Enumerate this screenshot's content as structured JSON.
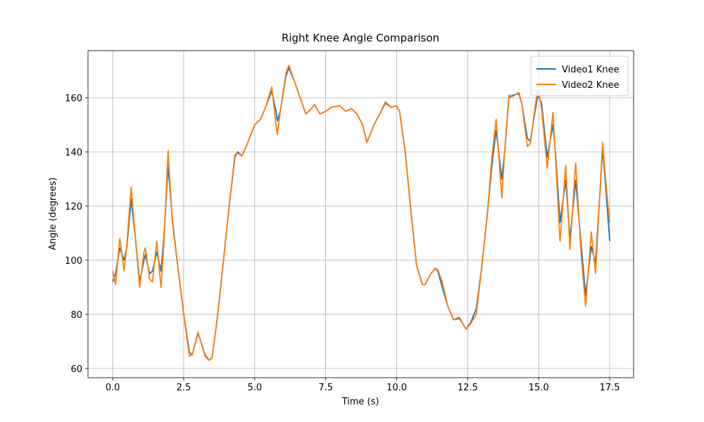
{
  "chart_data": {
    "type": "line",
    "title": "Right Knee Angle Comparison",
    "x_label": "Time (s)",
    "y_label": "Angle (degrees)",
    "x": [
      0,
      0.1,
      0.25,
      0.4,
      0.5,
      0.65,
      0.8,
      0.95,
      1.1,
      1.15,
      1.3,
      1.4,
      1.55,
      1.7,
      1.8,
      1.95,
      2.1,
      2.3,
      2.5,
      2.7,
      2.8,
      3.0,
      3.1,
      3.25,
      3.4,
      3.5,
      3.7,
      3.9,
      4.1,
      4.3,
      4.4,
      4.55,
      4.7,
      5.0,
      5.2,
      5.4,
      5.6,
      5.75,
      5.8,
      5.9,
      6.1,
      6.2,
      6.4,
      6.6,
      6.8,
      7.0,
      7.1,
      7.3,
      7.5,
      7.7,
      8.0,
      8.2,
      8.4,
      8.6,
      8.8,
      8.95,
      9.2,
      9.4,
      9.6,
      9.8,
      10.0,
      10.1,
      10.3,
      10.5,
      10.7,
      10.9,
      11.0,
      11.2,
      11.35,
      11.45,
      11.6,
      11.8,
      12.0,
      12.2,
      12.3,
      12.45,
      12.6,
      12.8,
      13.0,
      13.2,
      13.35,
      13.5,
      13.7,
      13.8,
      13.95,
      14.1,
      14.3,
      14.4,
      14.6,
      14.7,
      14.95,
      15.0,
      15.1,
      15.3,
      15.5,
      15.6,
      15.75,
      15.95,
      16.1,
      16.3,
      16.5,
      16.65,
      16.85,
      17.0,
      17.25,
      17.35,
      17.5
    ],
    "series": [
      {
        "name": "Video1 Knee",
        "color": "#1f77b4",
        "values": [
          92,
          95,
          104.5,
          100,
          105,
          122.5,
          108,
          92,
          100,
          102,
          95,
          96,
          103,
          96,
          108,
          135,
          115,
          97,
          80,
          66,
          65,
          73,
          70,
          65,
          63,
          64,
          80,
          100,
          120,
          138,
          140,
          138.5,
          142,
          150,
          152,
          157,
          162.5,
          155,
          151.5,
          155,
          168,
          171,
          166,
          160,
          154,
          156,
          157.5,
          154,
          155,
          156.5,
          157,
          155,
          156,
          154,
          150,
          143.5,
          150,
          154,
          158,
          156.5,
          157,
          155,
          140,
          118,
          98,
          91,
          91,
          95,
          97,
          96,
          90,
          83,
          78,
          78.5,
          77,
          74.5,
          77,
          82,
          98,
          118,
          135,
          148,
          130,
          140,
          160,
          161,
          161.5,
          158,
          145,
          144,
          160,
          160.5,
          158,
          138,
          150,
          138,
          114,
          129.5,
          108,
          129.5,
          105,
          87,
          105,
          99,
          141,
          128,
          107
        ]
      },
      {
        "name": "Video2 Knee",
        "color": "#ff7f0e",
        "values": [
          96,
          91,
          108,
          96,
          106,
          127,
          108,
          90,
          103,
          104.5,
          93,
          92,
          107,
          90,
          106,
          140.5,
          114,
          97,
          80,
          64.5,
          65,
          73.5,
          70,
          64.5,
          63,
          64,
          80,
          100,
          120,
          139,
          139.5,
          138.5,
          142,
          150,
          152,
          157,
          164,
          150,
          146.5,
          155,
          169,
          172,
          166,
          160,
          154,
          156,
          157.5,
          154,
          155,
          156.5,
          157,
          155,
          156,
          154,
          150,
          143.5,
          150,
          154,
          158.5,
          156.5,
          157,
          155,
          140,
          118,
          98,
          91,
          91,
          95,
          97,
          96.5,
          92,
          83,
          78,
          79,
          77,
          74.5,
          76.5,
          80,
          98,
          118,
          138,
          152,
          123,
          140,
          161,
          160.5,
          162,
          158,
          142,
          143,
          162.5,
          162,
          156,
          134,
          154.5,
          136,
          107,
          135,
          104,
          136,
          101,
          83,
          110.5,
          95,
          143.5,
          130,
          114
        ]
      }
    ],
    "xlim": [
      -0.87,
      18.34
    ],
    "ylim": [
      56.6,
      177.4
    ],
    "xticks": [
      {
        "value": 0,
        "label": "0.0"
      },
      2.5,
      {
        "value": 5,
        "label": "5.0"
      },
      7.5,
      {
        "value": 10,
        "label": "10.0"
      },
      12.5,
      {
        "value": 15,
        "label": "15.0"
      },
      17.5
    ],
    "yticks": [
      60,
      80,
      100,
      120,
      140,
      160
    ],
    "grid": true,
    "legend": "upper right"
  }
}
